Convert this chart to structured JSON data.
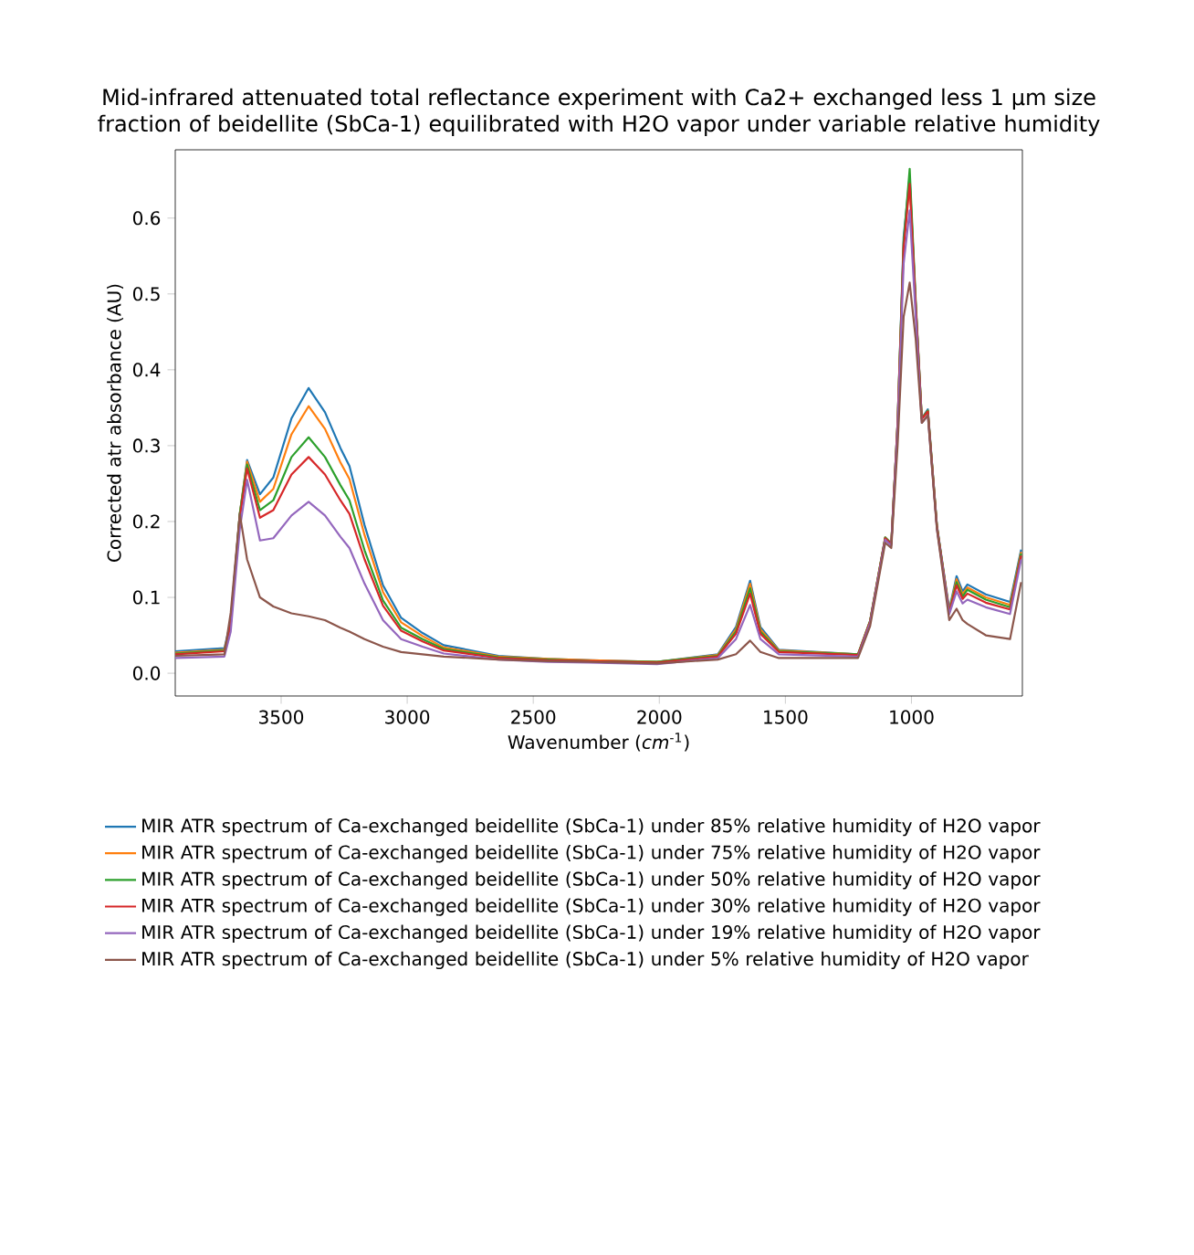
{
  "chart_data": {
    "type": "line",
    "title": "Mid-infrared attenuated total reflectance experiment with Ca2+ exchanged less 1 µm size fraction of beidellite (SbCa-1) equilibrated with H2O vapor under variable relative humidity",
    "xlabel": "Wavenumber (*cm*$^{-1}$)",
    "ylabel": "Corrected atr absorbance (AU)",
    "x": [
      3920,
      3725,
      3700,
      3664,
      3635,
      3584,
      3531,
      3459,
      3391,
      3326,
      3265,
      3229,
      3169,
      3096,
      3024,
      2939,
      2855,
      2638,
      2444,
      2275,
      2009,
      1768,
      1696,
      1640,
      1599,
      1526,
      1212,
      1164,
      1104,
      1080,
      1055,
      1031,
      1007,
      983,
      959,
      935,
      899,
      850,
      821,
      797,
      778,
      705,
      609,
      565
    ],
    "xlim": [
      3920,
      560
    ],
    "xticks": [
      3500,
      3000,
      2500,
      2000,
      1500,
      1000
    ],
    "ylim": [
      -0.03,
      0.69
    ],
    "yticks": [
      {
        "value": 0,
        "label": "0.0"
      },
      {
        "value": 0.1,
        "label": "0.1"
      },
      {
        "value": 0.2,
        "label": "0.2"
      },
      {
        "value": 0.3,
        "label": "0.3"
      },
      {
        "value": 0.4,
        "label": "0.4"
      },
      {
        "value": 0.5,
        "label": "0.5"
      },
      {
        "value": 0.6,
        "label": "0.6"
      }
    ],
    "legend": "bottom",
    "marker": "none",
    "line_style": "solid",
    "series": [
      {
        "name": "MIR ATR spectrum of Ca-exchanged beidellite (SbCa-1) under 85% relative humidity of H2O vapor",
        "color": "#1f77b4",
        "values": [
          0.029,
          0.033,
          0.069,
          0.21,
          0.281,
          0.236,
          0.258,
          0.336,
          0.376,
          0.344,
          0.297,
          0.273,
          0.195,
          0.116,
          0.073,
          0.053,
          0.037,
          0.023,
          0.019,
          0.017,
          0.015,
          0.025,
          0.061,
          0.122,
          0.061,
          0.031,
          0.025,
          0.069,
          0.179,
          0.171,
          0.329,
          0.575,
          0.655,
          0.486,
          0.336,
          0.348,
          0.195,
          0.084,
          0.128,
          0.108,
          0.117,
          0.104,
          0.094,
          0.163
        ]
      },
      {
        "name": "MIR ATR spectrum of Ca-exchanged beidellite (SbCa-1) under 75% relative humidity of H2O vapor",
        "color": "#ff7f0e",
        "values": [
          0.027,
          0.031,
          0.067,
          0.21,
          0.279,
          0.226,
          0.243,
          0.315,
          0.352,
          0.322,
          0.278,
          0.256,
          0.182,
          0.107,
          0.067,
          0.049,
          0.034,
          0.022,
          0.019,
          0.017,
          0.015,
          0.024,
          0.058,
          0.118,
          0.058,
          0.03,
          0.025,
          0.069,
          0.179,
          0.171,
          0.329,
          0.565,
          0.65,
          0.486,
          0.336,
          0.346,
          0.194,
          0.082,
          0.124,
          0.104,
          0.113,
          0.1,
          0.09,
          0.16
        ]
      },
      {
        "name": "MIR ATR spectrum of Ca-exchanged beidellite (SbCa-1) under 50% relative humidity of H2O vapor",
        "color": "#2ca02c",
        "values": [
          0.026,
          0.03,
          0.066,
          0.21,
          0.275,
          0.215,
          0.228,
          0.285,
          0.311,
          0.285,
          0.248,
          0.228,
          0.162,
          0.096,
          0.06,
          0.045,
          0.032,
          0.021,
          0.018,
          0.016,
          0.015,
          0.023,
          0.055,
          0.112,
          0.055,
          0.029,
          0.025,
          0.069,
          0.179,
          0.171,
          0.33,
          0.568,
          0.665,
          0.49,
          0.336,
          0.346,
          0.194,
          0.081,
          0.12,
          0.101,
          0.11,
          0.097,
          0.087,
          0.158
        ]
      },
      {
        "name": "MIR ATR spectrum of Ca-exchanged beidellite (SbCa-1) under 30% relative humidity of H2O vapor",
        "color": "#d62728",
        "values": [
          0.025,
          0.029,
          0.064,
          0.205,
          0.27,
          0.205,
          0.215,
          0.262,
          0.285,
          0.262,
          0.228,
          0.21,
          0.15,
          0.089,
          0.056,
          0.042,
          0.03,
          0.02,
          0.017,
          0.016,
          0.014,
          0.022,
          0.052,
          0.105,
          0.052,
          0.028,
          0.024,
          0.068,
          0.178,
          0.17,
          0.328,
          0.56,
          0.645,
          0.484,
          0.335,
          0.345,
          0.193,
          0.08,
          0.116,
          0.098,
          0.105,
          0.093,
          0.084,
          0.155
        ]
      },
      {
        "name": "MIR ATR spectrum of Ca-exchanged beidellite (SbCa-1) under 19% relative humidity of H2O vapor",
        "color": "#9467bd",
        "values": [
          0.02,
          0.022,
          0.055,
          0.19,
          0.255,
          0.175,
          0.178,
          0.208,
          0.226,
          0.208,
          0.18,
          0.165,
          0.118,
          0.07,
          0.045,
          0.035,
          0.026,
          0.018,
          0.015,
          0.014,
          0.012,
          0.02,
          0.045,
          0.09,
          0.045,
          0.025,
          0.022,
          0.066,
          0.176,
          0.168,
          0.32,
          0.54,
          0.61,
          0.47,
          0.33,
          0.34,
          0.19,
          0.078,
          0.108,
          0.092,
          0.097,
          0.087,
          0.078,
          0.15
        ]
      },
      {
        "name": "MIR ATR spectrum of Ca-exchanged beidellite (SbCa-1) under 5% relative humidity of H2O vapor",
        "color": "#8c564b",
        "values": [
          0.023,
          0.025,
          0.08,
          0.21,
          0.15,
          0.1,
          0.088,
          0.079,
          0.075,
          0.07,
          0.06,
          0.055,
          0.045,
          0.035,
          0.028,
          0.025,
          0.022,
          0.018,
          0.016,
          0.015,
          0.013,
          0.018,
          0.025,
          0.043,
          0.028,
          0.02,
          0.02,
          0.062,
          0.172,
          0.165,
          0.3,
          0.47,
          0.515,
          0.44,
          0.33,
          0.34,
          0.19,
          0.07,
          0.085,
          0.07,
          0.065,
          0.05,
          0.045,
          0.12
        ]
      }
    ]
  }
}
